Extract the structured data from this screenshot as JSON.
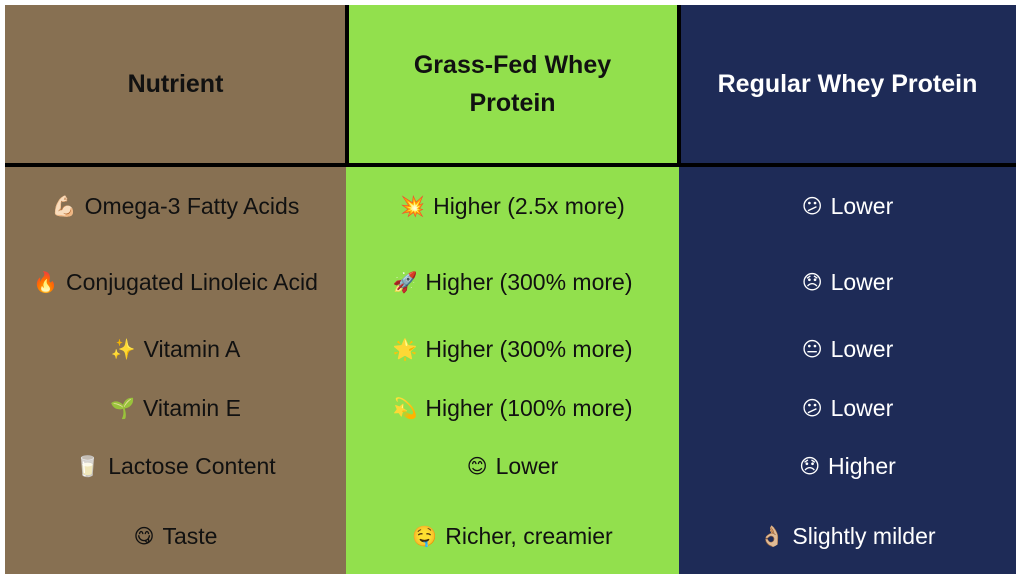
{
  "headers": [
    "Nutrient",
    "Grass-Fed Whey Protein",
    "Regular Whey Protein"
  ],
  "colors": {
    "nutrient_col": "#877052",
    "grass_fed_col": "#92e04d",
    "regular_col": "#1e2b57"
  },
  "rows": [
    {
      "nutrient": {
        "icon": "💪🏻",
        "text": "Omega-3 Fatty Acids"
      },
      "grass": {
        "icon": "💥",
        "text": "Higher (2.5x more)"
      },
      "regular": {
        "icon": "😕",
        "text": "Lower"
      }
    },
    {
      "nutrient": {
        "icon": "🔥",
        "text": "Conjugated Linoleic Acid"
      },
      "grass": {
        "icon": "🚀",
        "text": "Higher (300% more)"
      },
      "regular": {
        "icon": "😞",
        "text": "Lower"
      }
    },
    {
      "nutrient": {
        "icon": "✨",
        "text": "Vitamin A"
      },
      "grass": {
        "icon": "🌟",
        "text": "Higher (300% more)"
      },
      "regular": {
        "icon": "😐",
        "text": "Lower"
      }
    },
    {
      "nutrient": {
        "icon": "🌱",
        "text": "Vitamin E"
      },
      "grass": {
        "icon": "💫",
        "text": "Higher (100% more)"
      },
      "regular": {
        "icon": "😕",
        "text": "Lower"
      }
    },
    {
      "nutrient": {
        "icon": "🥛",
        "text": "Lactose Content"
      },
      "grass": {
        "icon": "😊",
        "text": "Lower"
      },
      "regular": {
        "icon": "😞",
        "text": "Higher"
      }
    },
    {
      "nutrient": {
        "icon": "😋",
        "text": "Taste"
      },
      "grass": {
        "icon": "🤤",
        "text": "Richer, creamier"
      },
      "regular": {
        "icon": "👌🏼",
        "text": "Slightly milder"
      }
    }
  ]
}
